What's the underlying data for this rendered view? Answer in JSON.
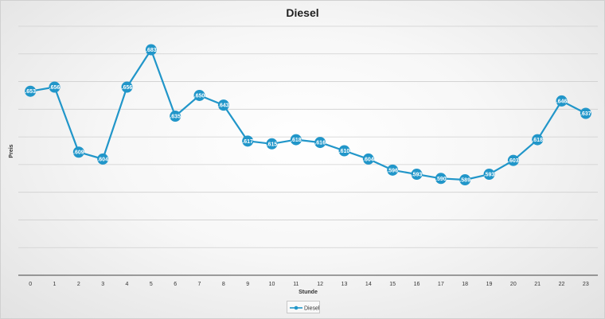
{
  "chart_data": {
    "type": "line",
    "title": "Diesel",
    "xlabel": "Stunde",
    "ylabel": "Preis",
    "categories": [
      "0",
      "1",
      "2",
      "3",
      "4",
      "5",
      "6",
      "7",
      "8",
      "9",
      "10",
      "11",
      "12",
      "13",
      "14",
      "15",
      "16",
      "17",
      "18",
      "19",
      "20",
      "21",
      "22",
      "23"
    ],
    "series": [
      {
        "name": "Diesel",
        "color": "#2196c9",
        "values": [
          1.653,
          1.656,
          1.609,
          1.604,
          1.656,
          1.683,
          1.635,
          1.65,
          1.643,
          1.617,
          1.615,
          1.618,
          1.616,
          1.61,
          1.604,
          1.596,
          1.593,
          1.59,
          1.589,
          1.593,
          1.603,
          1.618,
          1.646,
          1.637
        ]
      }
    ],
    "data_labels": [
      ".653",
      ".656",
      ".609",
      ".604",
      ".656",
      ".683",
      ".635",
      ".650",
      ".643",
      ".617",
      ".615",
      ".618",
      ".616",
      ".610",
      ".604",
      ".596",
      ".593",
      ".590",
      ".589",
      ".593",
      ".603",
      ".618",
      ".646",
      ".637"
    ],
    "ylim": [
      1.52,
      1.7
    ],
    "gridlines": 9,
    "show_y_tick_labels": false,
    "legend_position": "bottom",
    "grid": true
  }
}
